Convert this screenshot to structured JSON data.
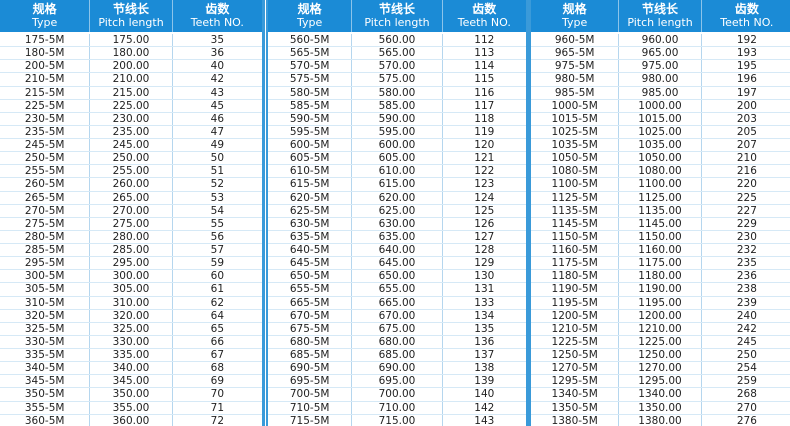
{
  "headers": {
    "type_zh": "规格",
    "type_en": "Type",
    "pitch_zh": "节线长",
    "pitch_en": "Pitch length",
    "teeth_zh": "齿数",
    "teeth_en": "Teeth NO."
  },
  "colors": {
    "header_bg": "#1b8bd6",
    "grid": "#b5d6ee"
  },
  "tables": [
    {
      "rows": [
        [
          "175-5M",
          "175.00",
          "35"
        ],
        [
          "180-5M",
          "180.00",
          "36"
        ],
        [
          "200-5M",
          "200.00",
          "40"
        ],
        [
          "210-5M",
          "210.00",
          "42"
        ],
        [
          "215-5M",
          "215.00",
          "43"
        ],
        [
          "225-5M",
          "225.00",
          "45"
        ],
        [
          "230-5M",
          "230.00",
          "46"
        ],
        [
          "235-5M",
          "235.00",
          "47"
        ],
        [
          "245-5M",
          "245.00",
          "49"
        ],
        [
          "250-5M",
          "250.00",
          "50"
        ],
        [
          "255-5M",
          "255.00",
          "51"
        ],
        [
          "260-5M",
          "260.00",
          "52"
        ],
        [
          "265-5M",
          "265.00",
          "53"
        ],
        [
          "270-5M",
          "270.00",
          "54"
        ],
        [
          "275-5M",
          "275.00",
          "55"
        ],
        [
          "280-5M",
          "280.00",
          "56"
        ],
        [
          "285-5M",
          "285.00",
          "57"
        ],
        [
          "295-5M",
          "295.00",
          "59"
        ],
        [
          "300-5M",
          "300.00",
          "60"
        ],
        [
          "305-5M",
          "305.00",
          "61"
        ],
        [
          "310-5M",
          "310.00",
          "62"
        ],
        [
          "320-5M",
          "320.00",
          "64"
        ],
        [
          "325-5M",
          "325.00",
          "65"
        ],
        [
          "330-5M",
          "330.00",
          "66"
        ],
        [
          "335-5M",
          "335.00",
          "67"
        ],
        [
          "340-5M",
          "340.00",
          "68"
        ],
        [
          "345-5M",
          "345.00",
          "69"
        ],
        [
          "350-5M",
          "350.00",
          "70"
        ],
        [
          "355-5M",
          "355.00",
          "71"
        ],
        [
          "360-5M",
          "360.00",
          "72"
        ]
      ]
    },
    {
      "rows": [
        [
          "560-5M",
          "560.00",
          "112"
        ],
        [
          "565-5M",
          "565.00",
          "113"
        ],
        [
          "570-5M",
          "570.00",
          "114"
        ],
        [
          "575-5M",
          "575.00",
          "115"
        ],
        [
          "580-5M",
          "580.00",
          "116"
        ],
        [
          "585-5M",
          "585.00",
          "117"
        ],
        [
          "590-5M",
          "590.00",
          "118"
        ],
        [
          "595-5M",
          "595.00",
          "119"
        ],
        [
          "600-5M",
          "600.00",
          "120"
        ],
        [
          "605-5M",
          "605.00",
          "121"
        ],
        [
          "610-5M",
          "610.00",
          "122"
        ],
        [
          "615-5M",
          "615.00",
          "123"
        ],
        [
          "620-5M",
          "620.00",
          "124"
        ],
        [
          "625-5M",
          "625.00",
          "125"
        ],
        [
          "630-5M",
          "630.00",
          "126"
        ],
        [
          "635-5M",
          "635.00",
          "127"
        ],
        [
          "640-5M",
          "640.00",
          "128"
        ],
        [
          "645-5M",
          "645.00",
          "129"
        ],
        [
          "650-5M",
          "650.00",
          "130"
        ],
        [
          "655-5M",
          "655.00",
          "131"
        ],
        [
          "665-5M",
          "665.00",
          "133"
        ],
        [
          "670-5M",
          "670.00",
          "134"
        ],
        [
          "675-5M",
          "675.00",
          "135"
        ],
        [
          "680-5M",
          "680.00",
          "136"
        ],
        [
          "685-5M",
          "685.00",
          "137"
        ],
        [
          "690-5M",
          "690.00",
          "138"
        ],
        [
          "695-5M",
          "695.00",
          "139"
        ],
        [
          "700-5M",
          "700.00",
          "140"
        ],
        [
          "710-5M",
          "710.00",
          "142"
        ],
        [
          "715-5M",
          "715.00",
          "143"
        ]
      ]
    },
    {
      "rows": [
        [
          "960-5M",
          "960.00",
          "192"
        ],
        [
          "965-5M",
          "965.00",
          "193"
        ],
        [
          "975-5M",
          "975.00",
          "195"
        ],
        [
          "980-5M",
          "980.00",
          "196"
        ],
        [
          "985-5M",
          "985.00",
          "197"
        ],
        [
          "1000-5M",
          "1000.00",
          "200"
        ],
        [
          "1015-5M",
          "1015.00",
          "203"
        ],
        [
          "1025-5M",
          "1025.00",
          "205"
        ],
        [
          "1035-5M",
          "1035.00",
          "207"
        ],
        [
          "1050-5M",
          "1050.00",
          "210"
        ],
        [
          "1080-5M",
          "1080.00",
          "216"
        ],
        [
          "1100-5M",
          "1100.00",
          "220"
        ],
        [
          "1125-5M",
          "1125.00",
          "225"
        ],
        [
          "1135-5M",
          "1135.00",
          "227"
        ],
        [
          "1145-5M",
          "1145.00",
          "229"
        ],
        [
          "1150-5M",
          "1150.00",
          "230"
        ],
        [
          "1160-5M",
          "1160.00",
          "232"
        ],
        [
          "1175-5M",
          "1175.00",
          "235"
        ],
        [
          "1180-5M",
          "1180.00",
          "236"
        ],
        [
          "1190-5M",
          "1190.00",
          "238"
        ],
        [
          "1195-5M",
          "1195.00",
          "239"
        ],
        [
          "1200-5M",
          "1200.00",
          "240"
        ],
        [
          "1210-5M",
          "1210.00",
          "242"
        ],
        [
          "1225-5M",
          "1225.00",
          "245"
        ],
        [
          "1250-5M",
          "1250.00",
          "250"
        ],
        [
          "1270-5M",
          "1270.00",
          "254"
        ],
        [
          "1295-5M",
          "1295.00",
          "259"
        ],
        [
          "1340-5M",
          "1340.00",
          "268"
        ],
        [
          "1350-5M",
          "1350.00",
          "270"
        ],
        [
          "1380-5M",
          "1380.00",
          "276"
        ]
      ]
    }
  ]
}
